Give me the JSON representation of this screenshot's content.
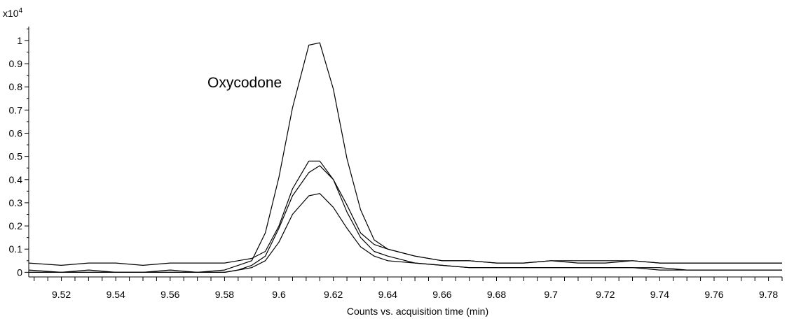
{
  "chart_data": {
    "type": "line",
    "title": "",
    "xlabel": "Counts vs. acquisition time (min)",
    "ylabel": "",
    "y_multiplier": "x10",
    "y_multiplier_exp": "4",
    "annotation": "Oxycodone",
    "xlim": [
      9.508,
      9.785
    ],
    "ylim": [
      -0.02,
      1.06
    ],
    "x_ticks": [
      "9.52",
      "9.54",
      "9.56",
      "9.58",
      "9.6",
      "9.62",
      "9.64",
      "9.66",
      "9.68",
      "9.7",
      "9.72",
      "9.74",
      "9.76",
      "9.78"
    ],
    "y_ticks": [
      "0",
      "0.1",
      "0.2",
      "0.3",
      "0.4",
      "0.5",
      "0.6",
      "0.7",
      "0.8",
      "0.9",
      "1"
    ],
    "grid": false,
    "line_color": "#000000",
    "series": [
      {
        "x": [
          9.508,
          9.52,
          9.53,
          9.54,
          9.55,
          9.56,
          9.57,
          9.58,
          9.585,
          9.59,
          9.595,
          9.6,
          9.605,
          9.611,
          9.615,
          9.62,
          9.625,
          9.63,
          9.635,
          9.64,
          9.65,
          9.66,
          9.67,
          9.68,
          9.69,
          9.7,
          9.71,
          9.72,
          9.73,
          9.74,
          9.75,
          9.76,
          9.77,
          9.785
        ],
        "y": [
          0.0,
          0.0,
          0.01,
          0.0,
          0.0,
          0.0,
          0.0,
          0.01,
          0.03,
          0.05,
          0.17,
          0.41,
          0.71,
          0.98,
          0.99,
          0.79,
          0.49,
          0.27,
          0.14,
          0.1,
          0.07,
          0.05,
          0.05,
          0.04,
          0.04,
          0.05,
          0.04,
          0.04,
          0.05,
          0.04,
          0.04,
          0.04,
          0.04,
          0.04
        ]
      },
      {
        "x": [
          9.508,
          9.52,
          9.53,
          9.54,
          9.55,
          9.56,
          9.57,
          9.58,
          9.585,
          9.59,
          9.595,
          9.6,
          9.605,
          9.611,
          9.615,
          9.62,
          9.625,
          9.63,
          9.635,
          9.64,
          9.65,
          9.66,
          9.67,
          9.68,
          9.69,
          9.7,
          9.71,
          9.72,
          9.73,
          9.74,
          9.75,
          9.76,
          9.77,
          9.785
        ],
        "y": [
          0.04,
          0.03,
          0.04,
          0.04,
          0.03,
          0.04,
          0.04,
          0.04,
          0.05,
          0.06,
          0.09,
          0.2,
          0.36,
          0.48,
          0.48,
          0.4,
          0.29,
          0.17,
          0.12,
          0.1,
          0.07,
          0.05,
          0.05,
          0.04,
          0.04,
          0.05,
          0.05,
          0.05,
          0.05,
          0.04,
          0.04,
          0.04,
          0.04,
          0.04
        ]
      },
      {
        "x": [
          9.508,
          9.52,
          9.53,
          9.54,
          9.55,
          9.56,
          9.57,
          9.58,
          9.585,
          9.59,
          9.595,
          9.6,
          9.605,
          9.611,
          9.615,
          9.62,
          9.625,
          9.63,
          9.635,
          9.64,
          9.65,
          9.66,
          9.67,
          9.68,
          9.69,
          9.7,
          9.71,
          9.72,
          9.73,
          9.74,
          9.75,
          9.76,
          9.77,
          9.785
        ],
        "y": [
          0.0,
          0.0,
          0.0,
          0.0,
          0.0,
          0.0,
          0.0,
          0.0,
          0.01,
          0.03,
          0.07,
          0.19,
          0.33,
          0.43,
          0.46,
          0.4,
          0.26,
          0.15,
          0.09,
          0.07,
          0.04,
          0.03,
          0.02,
          0.02,
          0.02,
          0.02,
          0.02,
          0.02,
          0.02,
          0.02,
          0.01,
          0.01,
          0.01,
          0.01
        ]
      },
      {
        "x": [
          9.508,
          9.52,
          9.53,
          9.54,
          9.55,
          9.56,
          9.57,
          9.58,
          9.585,
          9.59,
          9.595,
          9.6,
          9.605,
          9.611,
          9.615,
          9.62,
          9.625,
          9.63,
          9.635,
          9.64,
          9.65,
          9.66,
          9.67,
          9.68,
          9.69,
          9.7,
          9.71,
          9.72,
          9.73,
          9.74,
          9.75,
          9.76,
          9.77,
          9.785
        ],
        "y": [
          0.01,
          0.0,
          0.0,
          0.0,
          0.0,
          0.01,
          0.0,
          0.0,
          0.01,
          0.02,
          0.05,
          0.13,
          0.25,
          0.33,
          0.34,
          0.28,
          0.19,
          0.11,
          0.07,
          0.05,
          0.04,
          0.03,
          0.02,
          0.02,
          0.02,
          0.02,
          0.02,
          0.02,
          0.02,
          0.01,
          0.01,
          0.01,
          0.01,
          0.01
        ]
      }
    ]
  }
}
